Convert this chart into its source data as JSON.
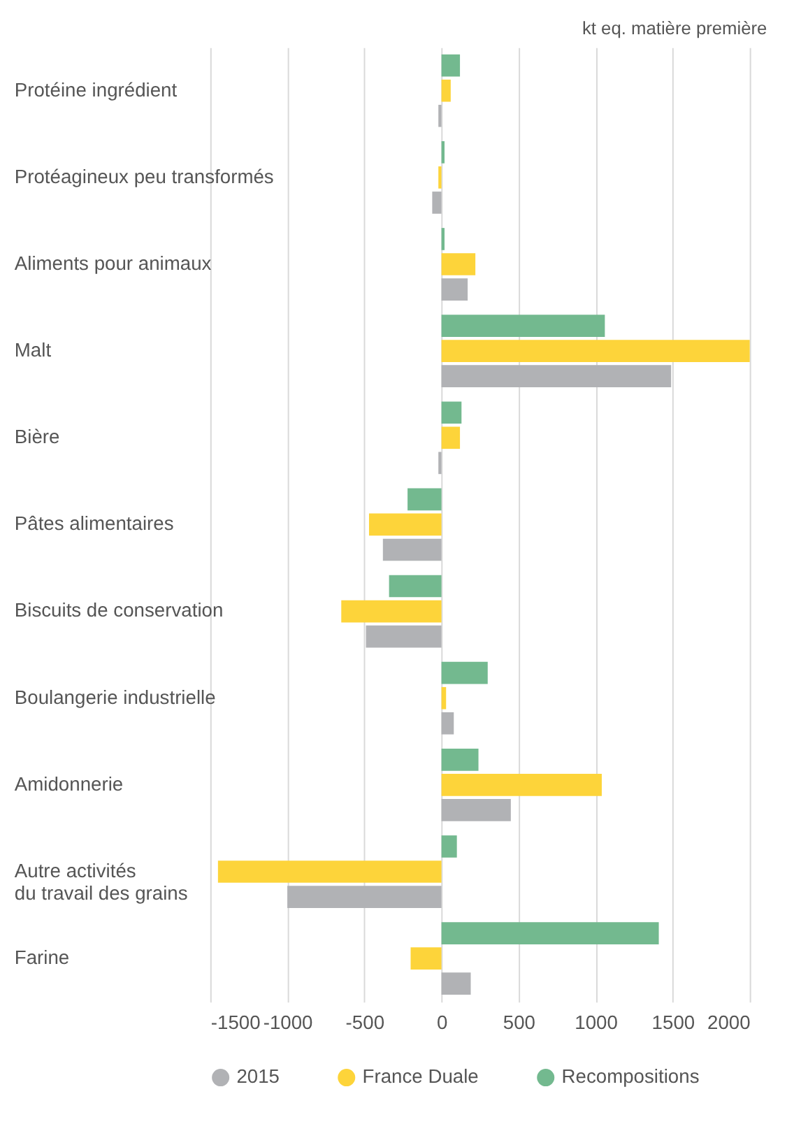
{
  "chart_data": {
    "type": "bar",
    "orientation": "horizontal",
    "xlabel": "kt eq. matière première",
    "categories": [
      "Protéine ingrédient",
      "Protéagineux peu transformés",
      "Aliments pour animaux",
      "Malt",
      "Bière",
      "Pâtes alimentaires",
      "Biscuits de conservation",
      "Boulangerie industrielle",
      "Amidonnerie",
      "Autre activités\ndu travail des grains",
      "Farine"
    ],
    "series": [
      {
        "name": "2015",
        "color": "#b1b2b5",
        "values": [
          -20,
          -60,
          170,
          1490,
          -20,
          -380,
          -490,
          80,
          450,
          -1000,
          190
        ]
      },
      {
        "name": "France Duale",
        "color": "#fdd43a",
        "values": [
          60,
          -20,
          220,
          2000,
          120,
          -470,
          -650,
          30,
          1040,
          -1450,
          -200
        ]
      },
      {
        "name": "Recompositions",
        "color": "#73b98f",
        "values": [
          120,
          20,
          20,
          1060,
          130,
          -220,
          -340,
          300,
          240,
          100,
          1410
        ]
      }
    ],
    "xlim": [
      -1500,
      2000
    ],
    "xticks": [
      -1500,
      -1000,
      -500,
      0,
      500,
      1000,
      1500,
      2000
    ],
    "grid": "x",
    "legend": "bottom"
  }
}
